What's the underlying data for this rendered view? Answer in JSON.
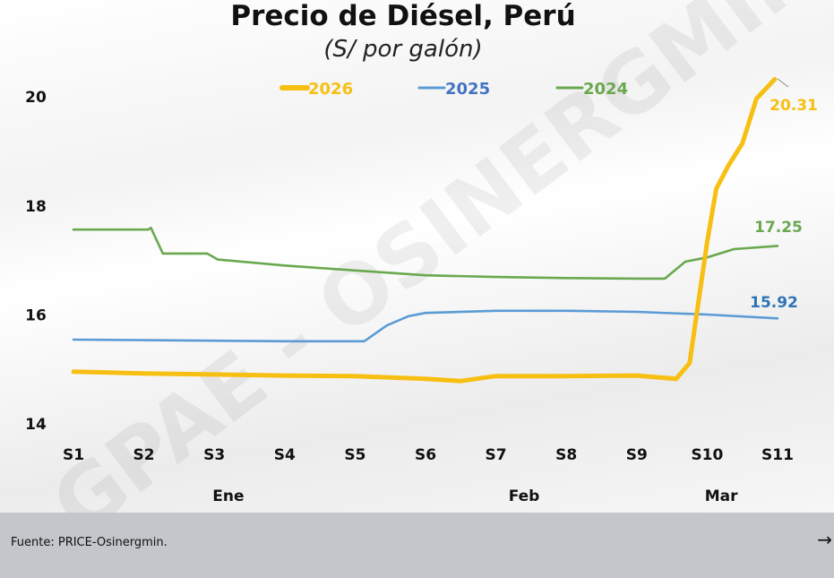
{
  "chart_data": {
    "type": "line",
    "title": "Precio de Diésel, Perú",
    "subtitle": "(S/ por galón)",
    "xlabel": "",
    "ylabel": "",
    "x_ticks": [
      "S1",
      "S2",
      "S3",
      "S4",
      "S5",
      "S6",
      "S7",
      "S8",
      "S9",
      "S10",
      "S11"
    ],
    "month_labels": [
      {
        "label": "Ene",
        "week": 3.2
      },
      {
        "label": "Feb",
        "week": 7.4
      },
      {
        "label": "Mar",
        "week": 10.2
      }
    ],
    "y_ticks": [
      14,
      16,
      18,
      20
    ],
    "ylim": [
      14,
      20.4
    ],
    "xlim": [
      1,
      11
    ],
    "grid": false,
    "legend_position": "top",
    "series": [
      {
        "name": "2026",
        "color": "#f7bf12",
        "end_label": "20.31",
        "x": [
          1,
          2,
          3,
          4,
          5,
          6,
          6.5,
          7,
          8,
          9,
          9.56,
          9.75,
          10,
          10.13,
          10.3,
          10.5,
          10.7,
          10.96
        ],
        "y": [
          14.94,
          14.91,
          14.89,
          14.87,
          14.86,
          14.81,
          14.77,
          14.86,
          14.86,
          14.87,
          14.81,
          15.1,
          17.32,
          18.3,
          18.72,
          19.13,
          19.95,
          20.31
        ]
      },
      {
        "name": "2025",
        "color": "#5b9bd5",
        "end_label": "15.92",
        "x": [
          1,
          2,
          3,
          4,
          5,
          5.13,
          5.45,
          5.76,
          6,
          7,
          8,
          9,
          10,
          11
        ],
        "y": [
          15.53,
          15.52,
          15.51,
          15.5,
          15.5,
          15.5,
          15.79,
          15.96,
          16.02,
          16.06,
          16.06,
          16.04,
          15.99,
          15.92
        ]
      },
      {
        "name": "2024",
        "color": "#6aa84f",
        "end_label": "17.25",
        "x": [
          1,
          2.06,
          2.1,
          2.27,
          2.9,
          3.05,
          4,
          5,
          6,
          7,
          8,
          9,
          9.4,
          9.69,
          10,
          10.38,
          11
        ],
        "y": [
          17.55,
          17.55,
          17.58,
          17.11,
          17.11,
          17.0,
          16.89,
          16.8,
          16.71,
          16.68,
          16.66,
          16.65,
          16.65,
          16.96,
          17.04,
          17.19,
          17.25
        ]
      }
    ]
  },
  "watermark": "GPAE - OSINERGMIN",
  "footer": {
    "source": "Fuente: PRICE-Osinergmin.",
    "arrow_icon": "→"
  }
}
